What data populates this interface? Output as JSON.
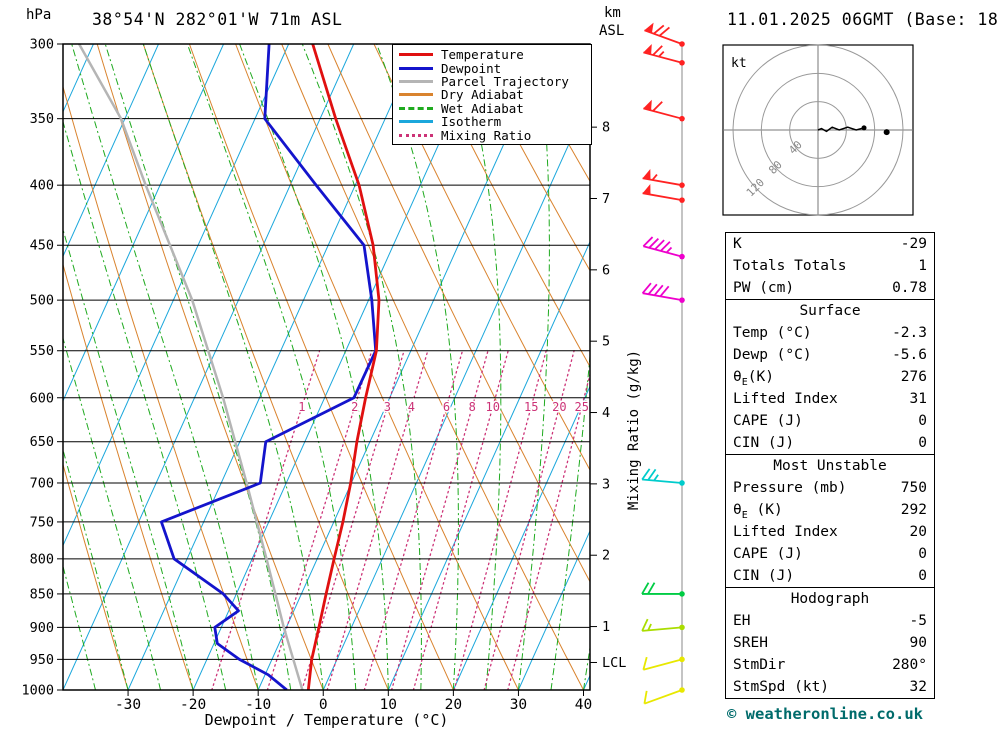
{
  "header": {
    "station": "38°54'N 282°01'W 71m ASL",
    "datetime": "11.01.2025 06GMT (Base: 18)"
  },
  "axes": {
    "pressure_unit": "hPa",
    "km_unit": "km",
    "asl_unit": "ASL",
    "x_label": "Dewpoint / Temperature (°C)",
    "mixing_label": "Mixing Ratio (g/kg)",
    "lcl_label": "LCL",
    "kt_label": "kt"
  },
  "legend": {
    "items": [
      {
        "label": "Temperature",
        "color": "#e01010",
        "style": "solid"
      },
      {
        "label": "Dewpoint",
        "color": "#1414cc",
        "style": "solid"
      },
      {
        "label": "Parcel Trajectory",
        "color": "#b5b5b5",
        "style": "solid"
      },
      {
        "label": "Dry Adiabat",
        "color": "#d9832e",
        "style": "solid"
      },
      {
        "label": "Wet Adiabat",
        "color": "#1faa1f",
        "style": "dashed"
      },
      {
        "label": "Isotherm",
        "color": "#1ba7dc",
        "style": "solid"
      },
      {
        "label": "Mixing Ratio",
        "color": "#cc3377",
        "style": "dotted"
      }
    ]
  },
  "chart_data": {
    "type": "skewt_logp_sounding",
    "pressure_ticks": [
      300,
      350,
      400,
      450,
      500,
      550,
      600,
      650,
      700,
      750,
      800,
      850,
      900,
      950,
      1000
    ],
    "temp_ticks": [
      -30,
      -20,
      -10,
      0,
      10,
      20,
      30,
      40
    ],
    "km_ticks": [
      1,
      2,
      3,
      4,
      5,
      6,
      7,
      8
    ],
    "temp_min": -40,
    "temp_max": 41,
    "skew": 0.45,
    "isotherms": {
      "start": -120,
      "end": 40,
      "step": 10
    },
    "dry_adiabats_c": {
      "start": -40,
      "end": 110,
      "step": 10
    },
    "wet_adiabats_c": {
      "start": -40,
      "end": 40,
      "step": 5
    },
    "mixing_ratios_gkg": [
      1,
      2,
      3,
      4,
      6,
      8,
      10,
      15,
      20,
      25
    ],
    "mixing_label_pressure": 610,
    "lcl_pressure": 955,
    "temperature_profile_p_c": [
      [
        1000,
        -2.3
      ],
      [
        950,
        -3.9
      ],
      [
        900,
        -5.0
      ],
      [
        850,
        -6.2
      ],
      [
        800,
        -7.4
      ],
      [
        750,
        -8.6
      ],
      [
        700,
        -10.1
      ],
      [
        650,
        -12.0
      ],
      [
        600,
        -13.7
      ],
      [
        550,
        -15.3
      ],
      [
        500,
        -18.4
      ],
      [
        450,
        -23.1
      ],
      [
        400,
        -29.4
      ],
      [
        350,
        -37.6
      ],
      [
        300,
        -46.3
      ]
    ],
    "dewpoint_profile_p_c": [
      [
        1000,
        -5.6
      ],
      [
        975,
        -9.5
      ],
      [
        950,
        -15.0
      ],
      [
        925,
        -19.5
      ],
      [
        900,
        -21.0
      ],
      [
        875,
        -18.5
      ],
      [
        850,
        -22.0
      ],
      [
        800,
        -32.0
      ],
      [
        750,
        -36.5
      ],
      [
        700,
        -24.0
      ],
      [
        650,
        -26.0
      ],
      [
        600,
        -15.5
      ],
      [
        550,
        -15.4
      ],
      [
        500,
        -19.5
      ],
      [
        450,
        -24.5
      ],
      [
        400,
        -36.0
      ],
      [
        350,
        -48.5
      ],
      [
        300,
        -53.0
      ]
    ],
    "parcel_profile_p_c": [
      [
        1000,
        -3.2
      ],
      [
        900,
        -10.4
      ],
      [
        850,
        -14.0
      ],
      [
        800,
        -17.8
      ],
      [
        700,
        -26.1
      ],
      [
        600,
        -35.6
      ],
      [
        500,
        -47.1
      ],
      [
        400,
        -62.2
      ],
      [
        350,
        -70.6
      ],
      [
        300,
        -82.2
      ]
    ],
    "wind_barbs": [
      {
        "p": 300,
        "speed_kt": 70,
        "dir_deg": 290,
        "color": "#ff2222"
      },
      {
        "p": 312,
        "speed_kt": 65,
        "dir_deg": 285,
        "color": "#ff2222"
      },
      {
        "p": 350,
        "speed_kt": 60,
        "dir_deg": 285,
        "color": "#ff2222"
      },
      {
        "p": 400,
        "speed_kt": 55,
        "dir_deg": 280,
        "color": "#ff2222"
      },
      {
        "p": 412,
        "speed_kt": 50,
        "dir_deg": 280,
        "color": "#ff2222"
      },
      {
        "p": 460,
        "speed_kt": 45,
        "dir_deg": 285,
        "color": "#ee00cc"
      },
      {
        "p": 500,
        "speed_kt": 40,
        "dir_deg": 280,
        "color": "#ee00cc"
      },
      {
        "p": 700,
        "speed_kt": 25,
        "dir_deg": 275,
        "color": "#00cccc"
      },
      {
        "p": 850,
        "speed_kt": 20,
        "dir_deg": 270,
        "color": "#00cc44"
      },
      {
        "p": 900,
        "speed_kt": 15,
        "dir_deg": 265,
        "color": "#aadd00"
      },
      {
        "p": 950,
        "speed_kt": 12,
        "dir_deg": 255,
        "color": "#e8e800"
      },
      {
        "p": 1000,
        "speed_kt": 10,
        "dir_deg": 250,
        "color": "#e8e800"
      }
    ],
    "hodograph": {
      "unit": "kt",
      "rings_kt": [
        40,
        80,
        120
      ],
      "trace_uv_kt": [
        [
          0,
          0
        ],
        [
          5,
          2
        ],
        [
          12,
          -2
        ],
        [
          20,
          4
        ],
        [
          30,
          0
        ],
        [
          42,
          4
        ],
        [
          54,
          0
        ],
        [
          65,
          3
        ]
      ],
      "marker_uv_kt": [
        97,
        -3
      ]
    }
  },
  "tables": {
    "sections": [
      {
        "title": "",
        "rows": [
          [
            "K",
            "-29"
          ],
          [
            "Totals Totals",
            "1"
          ],
          [
            "PW (cm)",
            "0.78"
          ]
        ]
      },
      {
        "title": "Surface",
        "rows": [
          [
            "Temp (°C)",
            "-2.3"
          ],
          [
            "Dewp (°C)",
            "-5.6"
          ],
          [
            "θE(K)",
            "276"
          ],
          [
            "Lifted Index",
            "31"
          ],
          [
            "CAPE (J)",
            "0"
          ],
          [
            "CIN (J)",
            "0"
          ]
        ]
      },
      {
        "title": "Most Unstable",
        "rows": [
          [
            "Pressure (mb)",
            "750"
          ],
          [
            "θE (K)",
            "292"
          ],
          [
            "Lifted Index",
            "20"
          ],
          [
            "CAPE (J)",
            "0"
          ],
          [
            "CIN (J)",
            "0"
          ]
        ]
      },
      {
        "title": "Hodograph",
        "rows": [
          [
            "EH",
            "-5"
          ],
          [
            "SREH",
            "90"
          ],
          [
            "StmDir",
            "280°"
          ],
          [
            "StmSpd (kt)",
            "32"
          ]
        ]
      }
    ]
  },
  "copyright": "© weatheronline.co.uk"
}
